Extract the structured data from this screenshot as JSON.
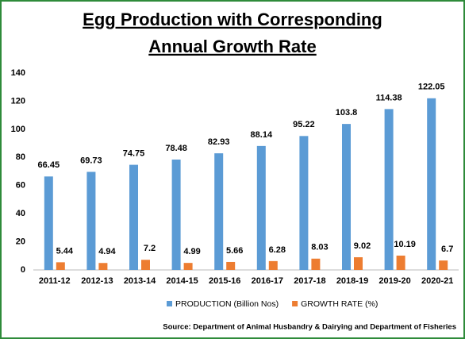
{
  "chart_data": {
    "type": "bar",
    "title": [
      "Egg Production with Corresponding",
      "Annual Growth Rate"
    ],
    "categories": [
      "2011-12",
      "2012-13",
      "2013-14",
      "2014-15",
      "2015-16",
      "2016-17",
      "2017-18",
      "2018-19",
      "2019-20",
      "2020-21"
    ],
    "series": [
      {
        "name": "PRODUCTION (Billion Nos)",
        "color": "#5b9bd5",
        "values": [
          66.45,
          69.73,
          74.75,
          78.48,
          82.93,
          88.14,
          95.22,
          103.8,
          114.38,
          122.05
        ]
      },
      {
        "name": "GROWTH RATE (%)",
        "color": "#ed7d31",
        "values": [
          5.44,
          4.94,
          7.2,
          4.99,
          5.66,
          6.28,
          8.03,
          9.02,
          10.19,
          6.7
        ]
      }
    ],
    "ylim": [
      0,
      140
    ],
    "yticks": [
      0,
      20,
      40,
      60,
      80,
      100,
      120,
      140
    ],
    "grid": false,
    "legend": "bottom",
    "source": "Source: Department of Animal Husbandry & Dairying and Department of Fisheries"
  }
}
